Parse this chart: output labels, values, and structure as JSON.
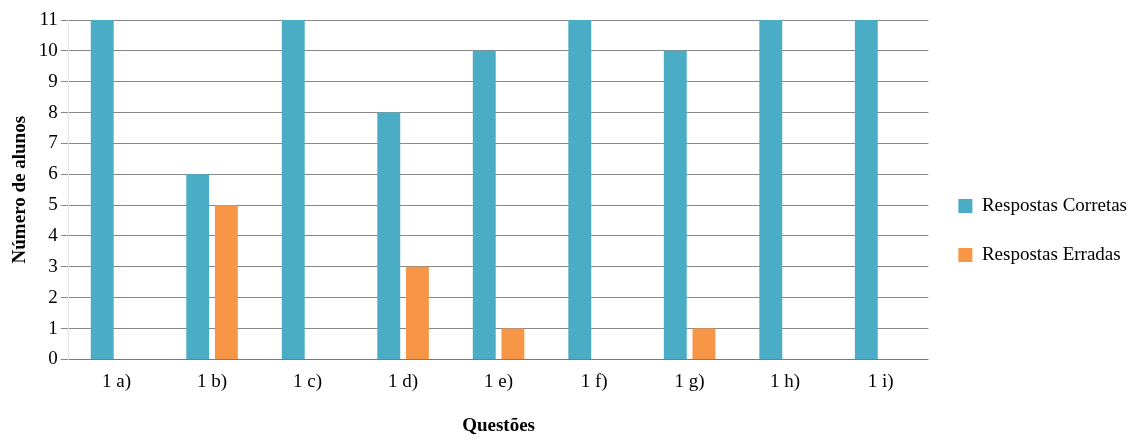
{
  "chart_data": {
    "type": "bar",
    "xlabel": "Questões",
    "ylabel": "Número de alunos",
    "categories": [
      "1 a)",
      "1 b)",
      "1 c)",
      "1 d)",
      "1 e)",
      "1 f)",
      "1 g)",
      "1 h)",
      "1 i)"
    ],
    "series": [
      {
        "name": "Respostas Corretas",
        "color": "#4bacc6",
        "values": [
          11,
          6,
          11,
          8,
          10,
          11,
          10,
          11,
          11
        ]
      },
      {
        "name": "Respostas Erradas",
        "color": "#f79646",
        "values": [
          0,
          5,
          0,
          3,
          1,
          0,
          1,
          0,
          0
        ]
      }
    ],
    "ylim": [
      0,
      11
    ],
    "yticks": [
      0,
      1,
      2,
      3,
      4,
      5,
      6,
      7,
      8,
      9,
      10,
      11
    ],
    "grid": "y",
    "legend": "right"
  }
}
